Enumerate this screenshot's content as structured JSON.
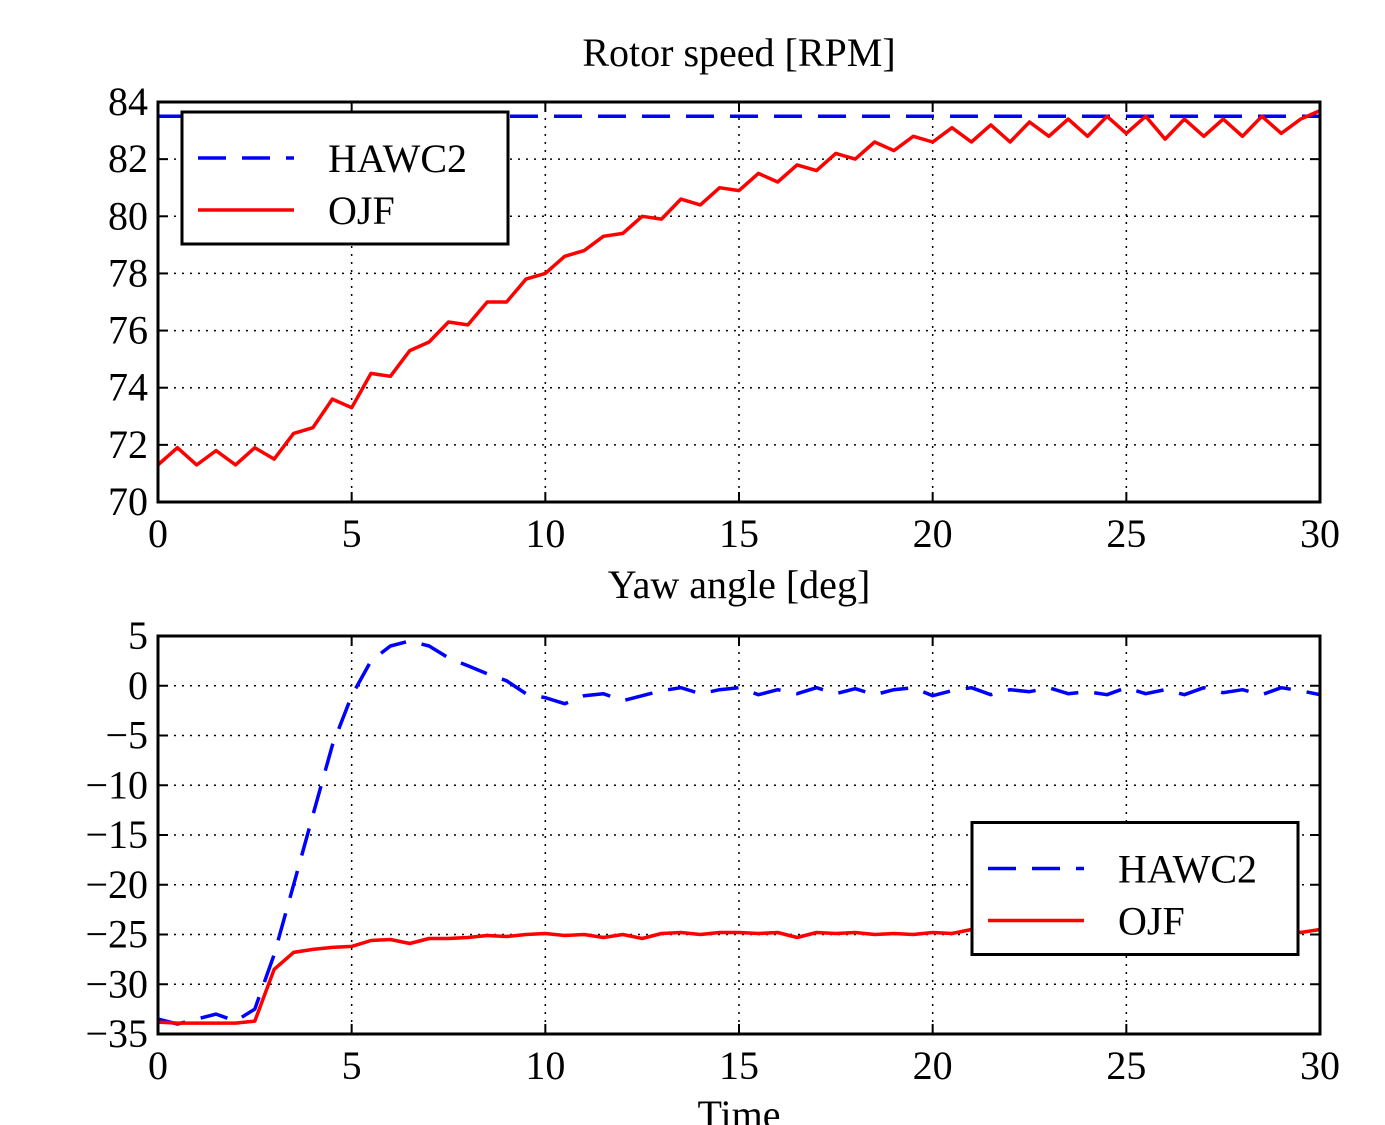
{
  "chart_data": [
    {
      "type": "line",
      "title": "Rotor speed [RPM]",
      "x": [
        0,
        0.5,
        1,
        1.5,
        2,
        2.5,
        3,
        3.5,
        4,
        4.5,
        5,
        5.5,
        6,
        6.5,
        7,
        7.5,
        8,
        8.5,
        9,
        9.5,
        10,
        10.5,
        11,
        11.5,
        12,
        12.5,
        13,
        13.5,
        14,
        14.5,
        15,
        15.5,
        16,
        16.5,
        17,
        17.5,
        18,
        18.5,
        19,
        19.5,
        20,
        20.5,
        21,
        21.5,
        22,
        22.5,
        23,
        23.5,
        24,
        24.5,
        25,
        25.5,
        26,
        26.5,
        27,
        27.5,
        28,
        28.5,
        29,
        29.5,
        30
      ],
      "series": [
        {
          "name": "HAWC2",
          "color": "#0000ff",
          "dashed": true,
          "values": [
            83.5,
            83.5,
            83.5,
            83.5,
            83.5,
            83.5,
            83.5,
            83.5,
            83.5,
            83.5,
            83.5,
            83.5,
            83.5,
            83.5,
            83.5,
            83.5,
            83.5,
            83.5,
            83.5,
            83.5,
            83.5,
            83.5,
            83.5,
            83.5,
            83.5,
            83.5,
            83.5,
            83.5,
            83.5,
            83.5,
            83.5,
            83.5,
            83.5,
            83.5,
            83.5,
            83.5,
            83.5,
            83.5,
            83.5,
            83.5,
            83.5,
            83.5,
            83.5,
            83.5,
            83.5,
            83.5,
            83.5,
            83.5,
            83.5,
            83.5,
            83.5,
            83.5,
            83.5,
            83.5,
            83.5,
            83.5,
            83.5,
            83.5,
            83.5,
            83.5,
            83.5
          ]
        },
        {
          "name": "OJF",
          "color": "#ff0000",
          "dashed": false,
          "values": [
            71.3,
            71.9,
            71.3,
            71.8,
            71.3,
            71.9,
            71.5,
            72.4,
            72.6,
            73.6,
            73.3,
            74.5,
            74.4,
            75.3,
            75.6,
            76.3,
            76.2,
            77.0,
            77.0,
            77.8,
            78.0,
            78.6,
            78.8,
            79.3,
            79.4,
            80.0,
            79.9,
            80.6,
            80.4,
            81.0,
            80.9,
            81.5,
            81.2,
            81.8,
            81.6,
            82.2,
            82.0,
            82.6,
            82.3,
            82.8,
            82.6,
            83.1,
            82.6,
            83.2,
            82.6,
            83.3,
            82.8,
            83.4,
            82.8,
            83.5,
            82.9,
            83.5,
            82.7,
            83.4,
            82.8,
            83.4,
            82.8,
            83.5,
            82.9,
            83.4,
            83.7
          ]
        }
      ],
      "xlim": [
        0,
        30
      ],
      "xticks": [
        0,
        5,
        10,
        15,
        20,
        25,
        30
      ],
      "ylim": [
        70,
        84
      ],
      "yticks": [
        70,
        72,
        74,
        76,
        78,
        80,
        82,
        84
      ],
      "grid": true,
      "legend": "upper left"
    },
    {
      "type": "line",
      "title": "Yaw angle [deg]",
      "xlabel": "Time",
      "x": [
        0,
        0.5,
        1,
        1.5,
        2,
        2.5,
        3,
        3.5,
        4,
        4.5,
        5,
        5.5,
        6,
        6.5,
        7,
        7.5,
        8,
        8.5,
        9,
        9.5,
        10,
        10.5,
        11,
        11.5,
        12,
        12.5,
        13,
        13.5,
        14,
        14.5,
        15,
        15.5,
        16,
        16.5,
        17,
        17.5,
        18,
        18.5,
        19,
        19.5,
        20,
        20.5,
        21,
        21.5,
        22,
        22.5,
        23,
        23.5,
        24,
        24.5,
        25,
        25.5,
        26,
        26.5,
        27,
        27.5,
        28,
        28.5,
        29,
        29.5,
        30
      ],
      "series": [
        {
          "name": "HAWC2",
          "color": "#0000ff",
          "dashed": true,
          "values": [
            -33.5,
            -34,
            -33.5,
            -33,
            -33.7,
            -32.5,
            -27,
            -20,
            -13,
            -6,
            -1,
            2.5,
            4,
            4.5,
            4,
            2.8,
            2,
            1.2,
            0.5,
            -0.8,
            -1.2,
            -1.8,
            -1,
            -0.8,
            -1.5,
            -1,
            -0.5,
            -0.2,
            -0.8,
            -0.4,
            -0.2,
            -0.9,
            -0.4,
            -0.8,
            -0.2,
            -0.8,
            -0.3,
            -0.9,
            -0.4,
            -0.2,
            -1,
            -0.5,
            -0.2,
            -0.9,
            -0.4,
            -0.6,
            -0.2,
            -0.8,
            -0.6,
            -0.9,
            -0.2,
            -0.8,
            -0.4,
            -0.9,
            -0.2,
            -0.7,
            -0.4,
            -0.9,
            -0.2,
            -0.5,
            -0.9
          ]
        },
        {
          "name": "OJF",
          "color": "#ff0000",
          "dashed": false,
          "values": [
            -33.8,
            -33.9,
            -33.9,
            -33.9,
            -33.9,
            -33.7,
            -28.5,
            -26.8,
            -26.5,
            -26.3,
            -26.2,
            -25.6,
            -25.5,
            -25.9,
            -25.4,
            -25.4,
            -25.3,
            -25.1,
            -25.2,
            -25.0,
            -24.9,
            -25.1,
            -25.0,
            -25.3,
            -25.0,
            -25.4,
            -24.9,
            -24.8,
            -25.0,
            -24.8,
            -24.8,
            -24.9,
            -24.8,
            -25.3,
            -24.8,
            -24.9,
            -24.8,
            -25.0,
            -24.9,
            -25.0,
            -24.8,
            -24.9,
            -24.5,
            -24.9,
            -24.7,
            -25.2,
            -24.8,
            -24.8,
            -25.0,
            -24.7,
            -24.8,
            -24.9,
            -24.8,
            -24.7,
            -24.9,
            -24.8,
            -24.7,
            -24.9,
            -24.4,
            -24.8,
            -24.5
          ]
        }
      ],
      "xlim": [
        0,
        30
      ],
      "xticks": [
        0,
        5,
        10,
        15,
        20,
        25,
        30
      ],
      "ylim": [
        -35,
        5
      ],
      "yticks": [
        {
          "value": -35,
          "label": "−35"
        },
        {
          "value": -30,
          "label": "−30"
        },
        {
          "value": -25,
          "label": "−25"
        },
        {
          "value": -20,
          "label": "−20"
        },
        {
          "value": -15,
          "label": "−15"
        },
        {
          "value": -10,
          "label": "−10"
        },
        {
          "value": -5,
          "label": "−5"
        },
        0,
        5
      ],
      "grid": true,
      "legend": "center right"
    }
  ]
}
